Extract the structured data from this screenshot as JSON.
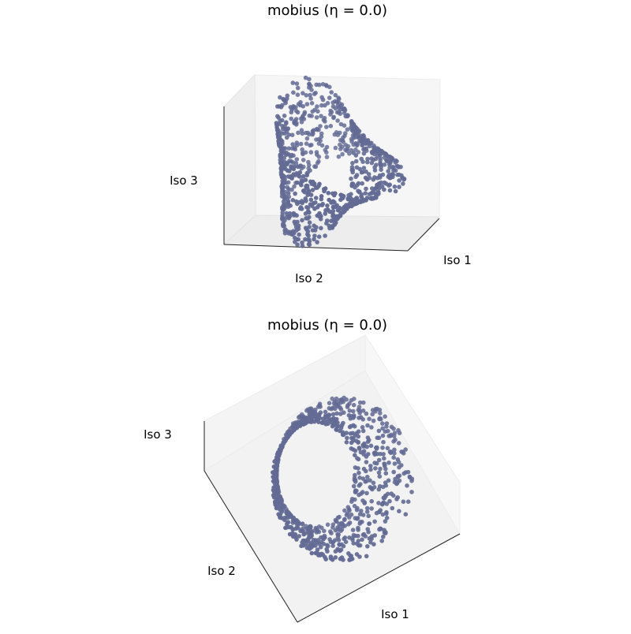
{
  "chart_data": [
    {
      "type": "scatter",
      "projection": "3d",
      "title": "mobius (η = 0.0)",
      "xlabel": "Iso 1",
      "ylabel": "Iso 2",
      "zlabel": "Iso 3",
      "marker_color": "#636b94",
      "grid": false,
      "ticks": false,
      "view": "side"
    },
    {
      "type": "scatter",
      "projection": "3d",
      "title": "mobius (η = 0.0)",
      "xlabel": "Iso 1",
      "ylabel": "Iso 2",
      "zlabel": "Iso 3",
      "marker_color": "#636b94",
      "grid": false,
      "ticks": false,
      "view": "top"
    }
  ]
}
